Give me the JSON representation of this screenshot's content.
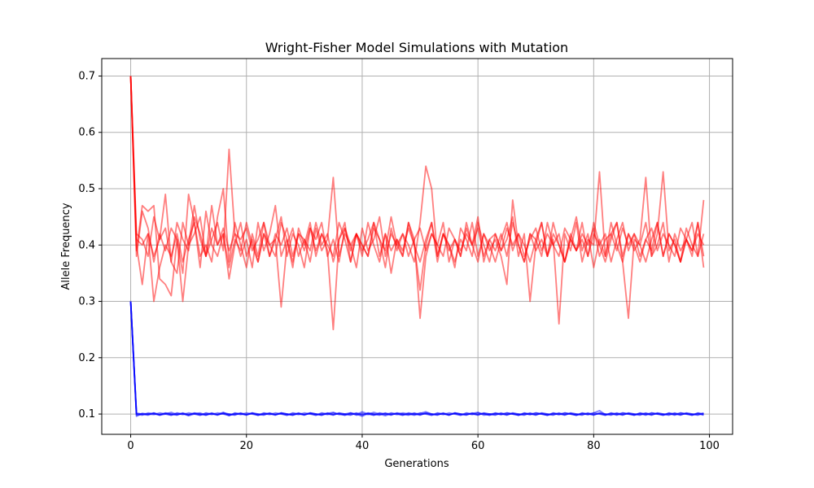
{
  "chart_data": {
    "type": "line",
    "title": "Wright-Fisher Model Simulations with Mutation",
    "xlabel": "Generations",
    "ylabel": "Allele Frequency",
    "xlim": [
      -5,
      104
    ],
    "ylim": [
      0.064,
      0.731
    ],
    "xticks": [
      0,
      20,
      40,
      60,
      80,
      100
    ],
    "yticks": [
      0.1,
      0.2,
      0.3,
      0.4,
      0.5,
      0.6,
      0.7
    ],
    "xtick_labels": [
      "0",
      "20",
      "40",
      "60",
      "80",
      "100"
    ],
    "ytick_labels": [
      "0.1",
      "0.2",
      "0.3",
      "0.4",
      "0.5",
      "0.6",
      "0.7"
    ],
    "grid": true,
    "legend": false,
    "colors": {
      "red_series": "#ff0000",
      "blue_series": "#0000ff"
    },
    "x": [
      0,
      1,
      2,
      3,
      4,
      5,
      6,
      7,
      8,
      9,
      10,
      11,
      12,
      13,
      14,
      15,
      16,
      17,
      18,
      19,
      20,
      21,
      22,
      23,
      24,
      25,
      26,
      27,
      28,
      29,
      30,
      31,
      32,
      33,
      34,
      35,
      36,
      37,
      38,
      39,
      40,
      41,
      42,
      43,
      44,
      45,
      46,
      47,
      48,
      49,
      50,
      51,
      52,
      53,
      54,
      55,
      56,
      57,
      58,
      59,
      60,
      61,
      62,
      63,
      64,
      65,
      66,
      67,
      68,
      69,
      70,
      71,
      72,
      73,
      74,
      75,
      76,
      77,
      78,
      79,
      80,
      81,
      82,
      83,
      84,
      85,
      86,
      87,
      88,
      89,
      90,
      91,
      92,
      93,
      94,
      95,
      96,
      97,
      98,
      99
    ],
    "series": [
      {
        "group": "red",
        "values": [
          0.7,
          0.41,
          0.4,
          0.42,
          0.38,
          0.41,
          0.43,
          0.37,
          0.35,
          0.44,
          0.4,
          0.42,
          0.45,
          0.38,
          0.41,
          0.44,
          0.39,
          0.57,
          0.42,
          0.38,
          0.41,
          0.36,
          0.44,
          0.39,
          0.42,
          0.47,
          0.38,
          0.41,
          0.36,
          0.43,
          0.4,
          0.44,
          0.38,
          0.42,
          0.39,
          0.25,
          0.41,
          0.44,
          0.37,
          0.42,
          0.4,
          0.38,
          0.44,
          0.41,
          0.36,
          0.43,
          0.39,
          0.42,
          0.4,
          0.37,
          0.44,
          0.54,
          0.5,
          0.38,
          0.42,
          0.4,
          0.36,
          0.43,
          0.41,
          0.38,
          0.44,
          0.4,
          0.37,
          0.42,
          0.39,
          0.41,
          0.45,
          0.38,
          0.42,
          0.3,
          0.4,
          0.44,
          0.38,
          0.41,
          0.26,
          0.42,
          0.39,
          0.44,
          0.37,
          0.41,
          0.4,
          0.53,
          0.38,
          0.42,
          0.44,
          0.37,
          0.27,
          0.41,
          0.4,
          0.44,
          0.38,
          0.42,
          0.53,
          0.39,
          0.41,
          0.37,
          0.43,
          0.4,
          0.38,
          0.48
        ]
      },
      {
        "group": "red",
        "values": [
          0.7,
          0.39,
          0.47,
          0.46,
          0.47,
          0.34,
          0.33,
          0.31,
          0.41,
          0.35,
          0.49,
          0.44,
          0.38,
          0.4,
          0.37,
          0.45,
          0.5,
          0.37,
          0.44,
          0.4,
          0.36,
          0.42,
          0.38,
          0.44,
          0.4,
          0.41,
          0.29,
          0.4,
          0.43,
          0.38,
          0.41,
          0.37,
          0.43,
          0.39,
          0.41,
          0.52,
          0.38,
          0.42,
          0.4,
          0.36,
          0.43,
          0.39,
          0.41,
          0.45,
          0.38,
          0.42,
          0.4,
          0.38,
          0.44,
          0.41,
          0.27,
          0.38,
          0.42,
          0.4,
          0.44,
          0.37,
          0.41,
          0.38,
          0.43,
          0.4,
          0.45,
          0.37,
          0.41,
          0.39,
          0.42,
          0.38,
          0.44,
          0.4,
          0.37,
          0.42,
          0.41,
          0.38,
          0.44,
          0.4,
          0.42,
          0.37,
          0.41,
          0.45,
          0.39,
          0.42,
          0.36,
          0.41,
          0.38,
          0.44,
          0.4,
          0.37,
          0.42,
          0.39,
          0.41,
          0.52,
          0.38,
          0.4,
          0.44,
          0.37,
          0.42,
          0.39,
          0.41,
          0.38,
          0.44,
          0.36
        ]
      },
      {
        "group": "red",
        "values": [
          0.7,
          0.4,
          0.33,
          0.42,
          0.3,
          0.36,
          0.4,
          0.38,
          0.42,
          0.37,
          0.41,
          0.44,
          0.36,
          0.46,
          0.4,
          0.38,
          0.42,
          0.36,
          0.41,
          0.39,
          0.44,
          0.4,
          0.37,
          0.42,
          0.38,
          0.41,
          0.45,
          0.38,
          0.42,
          0.4,
          0.36,
          0.43,
          0.39,
          0.42,
          0.4,
          0.38,
          0.44,
          0.41,
          0.37,
          0.42,
          0.39,
          0.41,
          0.44,
          0.38,
          0.42,
          0.35,
          0.41,
          0.39,
          0.43,
          0.4,
          0.32,
          0.4,
          0.44,
          0.37,
          0.42,
          0.39,
          0.41,
          0.38,
          0.44,
          0.4,
          0.37,
          0.42,
          0.39,
          0.41,
          0.38,
          0.33,
          0.48,
          0.4,
          0.37,
          0.42,
          0.39,
          0.41,
          0.38,
          0.44,
          0.4,
          0.37,
          0.42,
          0.39,
          0.41,
          0.38,
          0.44,
          0.4,
          0.42,
          0.37,
          0.41,
          0.44,
          0.39,
          0.42,
          0.4,
          0.37,
          0.41,
          0.44,
          0.38,
          0.42,
          0.4,
          0.37,
          0.41,
          0.39,
          0.44,
          0.38
        ]
      },
      {
        "group": "red",
        "values": [
          0.7,
          0.38,
          0.46,
          0.43,
          0.37,
          0.42,
          0.39,
          0.43,
          0.41,
          0.3,
          0.4,
          0.47,
          0.41,
          0.38,
          0.43,
          0.4,
          0.42,
          0.34,
          0.4,
          0.44,
          0.38,
          0.41,
          0.37,
          0.42,
          0.4,
          0.38,
          0.44,
          0.41,
          0.37,
          0.42,
          0.39,
          0.43,
          0.41,
          0.44,
          0.38,
          0.41,
          0.37,
          0.43,
          0.4,
          0.42,
          0.38,
          0.44,
          0.4,
          0.37,
          0.42,
          0.39,
          0.41,
          0.38,
          0.44,
          0.4,
          0.37,
          0.41,
          0.44,
          0.38,
          0.42,
          0.4,
          0.37,
          0.41,
          0.39,
          0.44,
          0.38,
          0.42,
          0.4,
          0.37,
          0.41,
          0.44,
          0.39,
          0.42,
          0.4,
          0.37,
          0.41,
          0.44,
          0.38,
          0.42,
          0.4,
          0.37,
          0.41,
          0.39,
          0.44,
          0.38,
          0.42,
          0.4,
          0.37,
          0.41,
          0.44,
          0.38,
          0.42,
          0.4,
          0.37,
          0.41,
          0.39,
          0.44,
          0.38,
          0.42,
          0.4,
          0.37,
          0.41,
          0.44,
          0.38,
          0.42
        ]
      },
      {
        "group": "red",
        "values": [
          0.7,
          0.42,
          0.41,
          0.38,
          0.45,
          0.41,
          0.49,
          0.37,
          0.44,
          0.41,
          0.39,
          0.45,
          0.42,
          0.38,
          0.47,
          0.4,
          0.43,
          0.39,
          0.42,
          0.41,
          0.43,
          0.39,
          0.41,
          0.44,
          0.38,
          0.42,
          0.4,
          0.43,
          0.38,
          0.42,
          0.41,
          0.39,
          0.44,
          0.4,
          0.42,
          0.37,
          0.41,
          0.43,
          0.39,
          0.42,
          0.4,
          0.38,
          0.43,
          0.41,
          0.39,
          0.45,
          0.4,
          0.42,
          0.38,
          0.41,
          0.43,
          0.39,
          0.42,
          0.4,
          0.38,
          0.43,
          0.41,
          0.39,
          0.42,
          0.4,
          0.43,
          0.38,
          0.41,
          0.42,
          0.39,
          0.43,
          0.4,
          0.42,
          0.38,
          0.41,
          0.43,
          0.39,
          0.42,
          0.4,
          0.38,
          0.43,
          0.41,
          0.39,
          0.42,
          0.4,
          0.43,
          0.38,
          0.41,
          0.42,
          0.39,
          0.43,
          0.4,
          0.42,
          0.38,
          0.41,
          0.43,
          0.39,
          0.42,
          0.4,
          0.38,
          0.43,
          0.41,
          0.39,
          0.42,
          0.4
        ]
      },
      {
        "group": "blue",
        "values": [
          0.3,
          0.096,
          0.101,
          0.099,
          0.102,
          0.098,
          0.1,
          0.103,
          0.099,
          0.101,
          0.097,
          0.1,
          0.102,
          0.098,
          0.101,
          0.099,
          0.103,
          0.098,
          0.1,
          0.101,
          0.099,
          0.102,
          0.098,
          0.1,
          0.101,
          0.099,
          0.102,
          0.1,
          0.098,
          0.101,
          0.099,
          0.102,
          0.1,
          0.098,
          0.101,
          0.103,
          0.099,
          0.1,
          0.102,
          0.098,
          0.101,
          0.099,
          0.103,
          0.1,
          0.097,
          0.101,
          0.099,
          0.102,
          0.1,
          0.098,
          0.101,
          0.104,
          0.1,
          0.099,
          0.101,
          0.098,
          0.102,
          0.1,
          0.099,
          0.101,
          0.103,
          0.098,
          0.1,
          0.101,
          0.099,
          0.102,
          0.1,
          0.098,
          0.101,
          0.099,
          0.102,
          0.1,
          0.098,
          0.101,
          0.099,
          0.102,
          0.1,
          0.098,
          0.101,
          0.099,
          0.102,
          0.106,
          0.099,
          0.101,
          0.098,
          0.102,
          0.1,
          0.099,
          0.101,
          0.098,
          0.102,
          0.1,
          0.099,
          0.101,
          0.098,
          0.102,
          0.1,
          0.099,
          0.101,
          0.098
        ]
      },
      {
        "group": "blue",
        "values": [
          0.3,
          0.1,
          0.098,
          0.102,
          0.1,
          0.099,
          0.101,
          0.098,
          0.102,
          0.1,
          0.099,
          0.101,
          0.098,
          0.102,
          0.1,
          0.099,
          0.101,
          0.097,
          0.102,
          0.1,
          0.099,
          0.101,
          0.098,
          0.102,
          0.1,
          0.099,
          0.101,
          0.098,
          0.102,
          0.1,
          0.099,
          0.101,
          0.098,
          0.102,
          0.1,
          0.099,
          0.101,
          0.098,
          0.102,
          0.1,
          0.096,
          0.101,
          0.098,
          0.102,
          0.1,
          0.099,
          0.101,
          0.098,
          0.102,
          0.1,
          0.099,
          0.101,
          0.098,
          0.102,
          0.1,
          0.099,
          0.101,
          0.098,
          0.102,
          0.1,
          0.099,
          0.101,
          0.098,
          0.102,
          0.1,
          0.099,
          0.101,
          0.098,
          0.102,
          0.1,
          0.099,
          0.101,
          0.098,
          0.102,
          0.1,
          0.099,
          0.101,
          0.098,
          0.102,
          0.1,
          0.099,
          0.101,
          0.098,
          0.102,
          0.1,
          0.099,
          0.101,
          0.098,
          0.102,
          0.1,
          0.099,
          0.101,
          0.098,
          0.102,
          0.1,
          0.099,
          0.101,
          0.098,
          0.102,
          0.1
        ]
      },
      {
        "group": "blue",
        "values": [
          0.3,
          0.102,
          0.099,
          0.1,
          0.101,
          0.098,
          0.102,
          0.1,
          0.099,
          0.101,
          0.098,
          0.102,
          0.1,
          0.099,
          0.101,
          0.098,
          0.102,
          0.1,
          0.099,
          0.101,
          0.098,
          0.102,
          0.1,
          0.099,
          0.101,
          0.098,
          0.102,
          0.1,
          0.099,
          0.101,
          0.098,
          0.102,
          0.1,
          0.099,
          0.101,
          0.098,
          0.102,
          0.1,
          0.099,
          0.101,
          0.098,
          0.102,
          0.1,
          0.099,
          0.101,
          0.098,
          0.102,
          0.1,
          0.099,
          0.101,
          0.098,
          0.102,
          0.1,
          0.099,
          0.101,
          0.098,
          0.102,
          0.1,
          0.099,
          0.101,
          0.098,
          0.102,
          0.1,
          0.099,
          0.101,
          0.098,
          0.102,
          0.1,
          0.099,
          0.101,
          0.098,
          0.102,
          0.1,
          0.099,
          0.101,
          0.098,
          0.102,
          0.1,
          0.099,
          0.101,
          0.098,
          0.102,
          0.1,
          0.099,
          0.101,
          0.098,
          0.102,
          0.1,
          0.099,
          0.101,
          0.098,
          0.102,
          0.1,
          0.099,
          0.101,
          0.098,
          0.102,
          0.1,
          0.099,
          0.101
        ]
      },
      {
        "group": "blue",
        "values": [
          0.3,
          0.098,
          0.101,
          0.1,
          0.099,
          0.102,
          0.1,
          0.098,
          0.101,
          0.099,
          0.102,
          0.1,
          0.098,
          0.101,
          0.099,
          0.102,
          0.1,
          0.098,
          0.101,
          0.099,
          0.102,
          0.1,
          0.098,
          0.101,
          0.099,
          0.102,
          0.1,
          0.098,
          0.101,
          0.099,
          0.102,
          0.1,
          0.098,
          0.101,
          0.099,
          0.102,
          0.1,
          0.098,
          0.101,
          0.099,
          0.104,
          0.1,
          0.098,
          0.101,
          0.099,
          0.102,
          0.1,
          0.098,
          0.101,
          0.099,
          0.102,
          0.1,
          0.098,
          0.101,
          0.099,
          0.102,
          0.1,
          0.098,
          0.101,
          0.099,
          0.102,
          0.1,
          0.098,
          0.101,
          0.099,
          0.102,
          0.1,
          0.098,
          0.101,
          0.099,
          0.102,
          0.1,
          0.098,
          0.101,
          0.099,
          0.102,
          0.1,
          0.098,
          0.101,
          0.099,
          0.102,
          0.1,
          0.098,
          0.101,
          0.099,
          0.102,
          0.1,
          0.098,
          0.101,
          0.099,
          0.102,
          0.1,
          0.098,
          0.101,
          0.099,
          0.102,
          0.1,
          0.098,
          0.101,
          0.099
        ]
      },
      {
        "group": "blue",
        "values": [
          0.3,
          0.101,
          0.1,
          0.098,
          0.102,
          0.099,
          0.101,
          0.1,
          0.098,
          0.102,
          0.099,
          0.101,
          0.1,
          0.098,
          0.102,
          0.099,
          0.101,
          0.1,
          0.098,
          0.102,
          0.099,
          0.101,
          0.1,
          0.098,
          0.102,
          0.099,
          0.101,
          0.1,
          0.098,
          0.102,
          0.099,
          0.101,
          0.1,
          0.098,
          0.102,
          0.099,
          0.101,
          0.1,
          0.098,
          0.102,
          0.099,
          0.101,
          0.1,
          0.098,
          0.102,
          0.099,
          0.101,
          0.1,
          0.098,
          0.102,
          0.099,
          0.101,
          0.1,
          0.098,
          0.102,
          0.099,
          0.101,
          0.1,
          0.098,
          0.102,
          0.099,
          0.101,
          0.1,
          0.098,
          0.102,
          0.099,
          0.101,
          0.1,
          0.098,
          0.102,
          0.099,
          0.101,
          0.1,
          0.098,
          0.102,
          0.099,
          0.101,
          0.1,
          0.098,
          0.102,
          0.099,
          0.101,
          0.1,
          0.098,
          0.102,
          0.099,
          0.101,
          0.1,
          0.098,
          0.102,
          0.099,
          0.101,
          0.1,
          0.098,
          0.102,
          0.099,
          0.101,
          0.1,
          0.098,
          0.102
        ]
      }
    ]
  }
}
